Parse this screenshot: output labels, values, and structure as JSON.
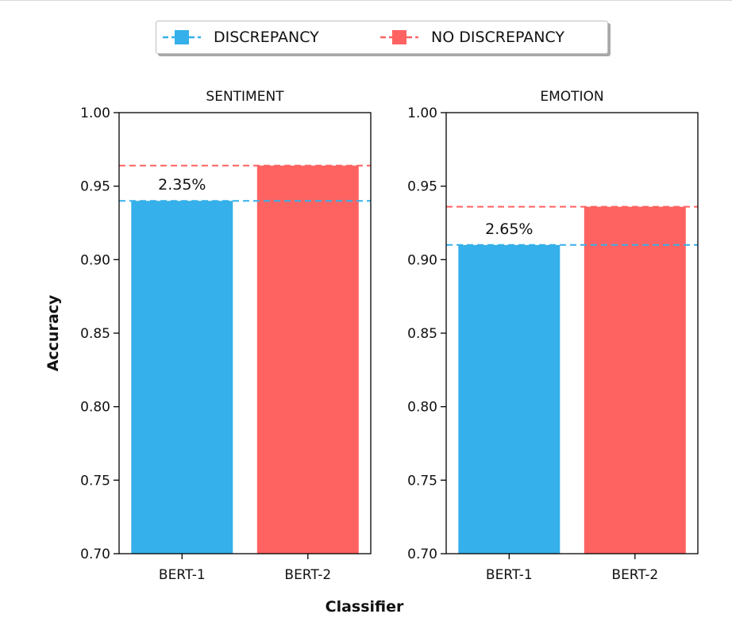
{
  "legend": {
    "items": [
      {
        "label": "DISCREPANCY",
        "color": "#35b0ea",
        "icon": "dashed-line-square-marker"
      },
      {
        "label": "NO DISCREPANCY",
        "color": "#ff6361",
        "icon": "dashed-line-square-marker"
      }
    ]
  },
  "shared": {
    "ylabel": "Accuracy",
    "xlabel": "Classifier"
  },
  "chart_data": [
    {
      "type": "bar",
      "title": "SENTIMENT",
      "categories": [
        "BERT-1",
        "BERT-2"
      ],
      "values": [
        0.94,
        0.964
      ],
      "bar_colors": [
        "#35b0ea",
        "#ff6361"
      ],
      "reference_lines": [
        {
          "series": "DISCREPANCY",
          "value": 0.94,
          "color": "#35b0ea",
          "style": "dashed"
        },
        {
          "series": "NO DISCREPANCY",
          "value": 0.964,
          "color": "#ff6361",
          "style": "dashed"
        }
      ],
      "annotation": "2.35%",
      "ylabel": "Accuracy",
      "ylim": [
        0.7,
        1.0
      ],
      "yticks": [
        "0.70",
        "0.75",
        "0.80",
        "0.85",
        "0.90",
        "0.95",
        "1.00"
      ],
      "grid": false
    },
    {
      "type": "bar",
      "title": "EMOTION",
      "categories": [
        "BERT-1",
        "BERT-2"
      ],
      "values": [
        0.91,
        0.936
      ],
      "bar_colors": [
        "#35b0ea",
        "#ff6361"
      ],
      "reference_lines": [
        {
          "series": "DISCREPANCY",
          "value": 0.91,
          "color": "#35b0ea",
          "style": "dashed"
        },
        {
          "series": "NO DISCREPANCY",
          "value": 0.936,
          "color": "#ff6361",
          "style": "dashed"
        }
      ],
      "annotation": "2.65%",
      "ylim": [
        0.7,
        1.0
      ],
      "yticks": [
        "0.70",
        "0.75",
        "0.80",
        "0.85",
        "0.90",
        "0.95",
        "1.00"
      ],
      "grid": false
    }
  ]
}
